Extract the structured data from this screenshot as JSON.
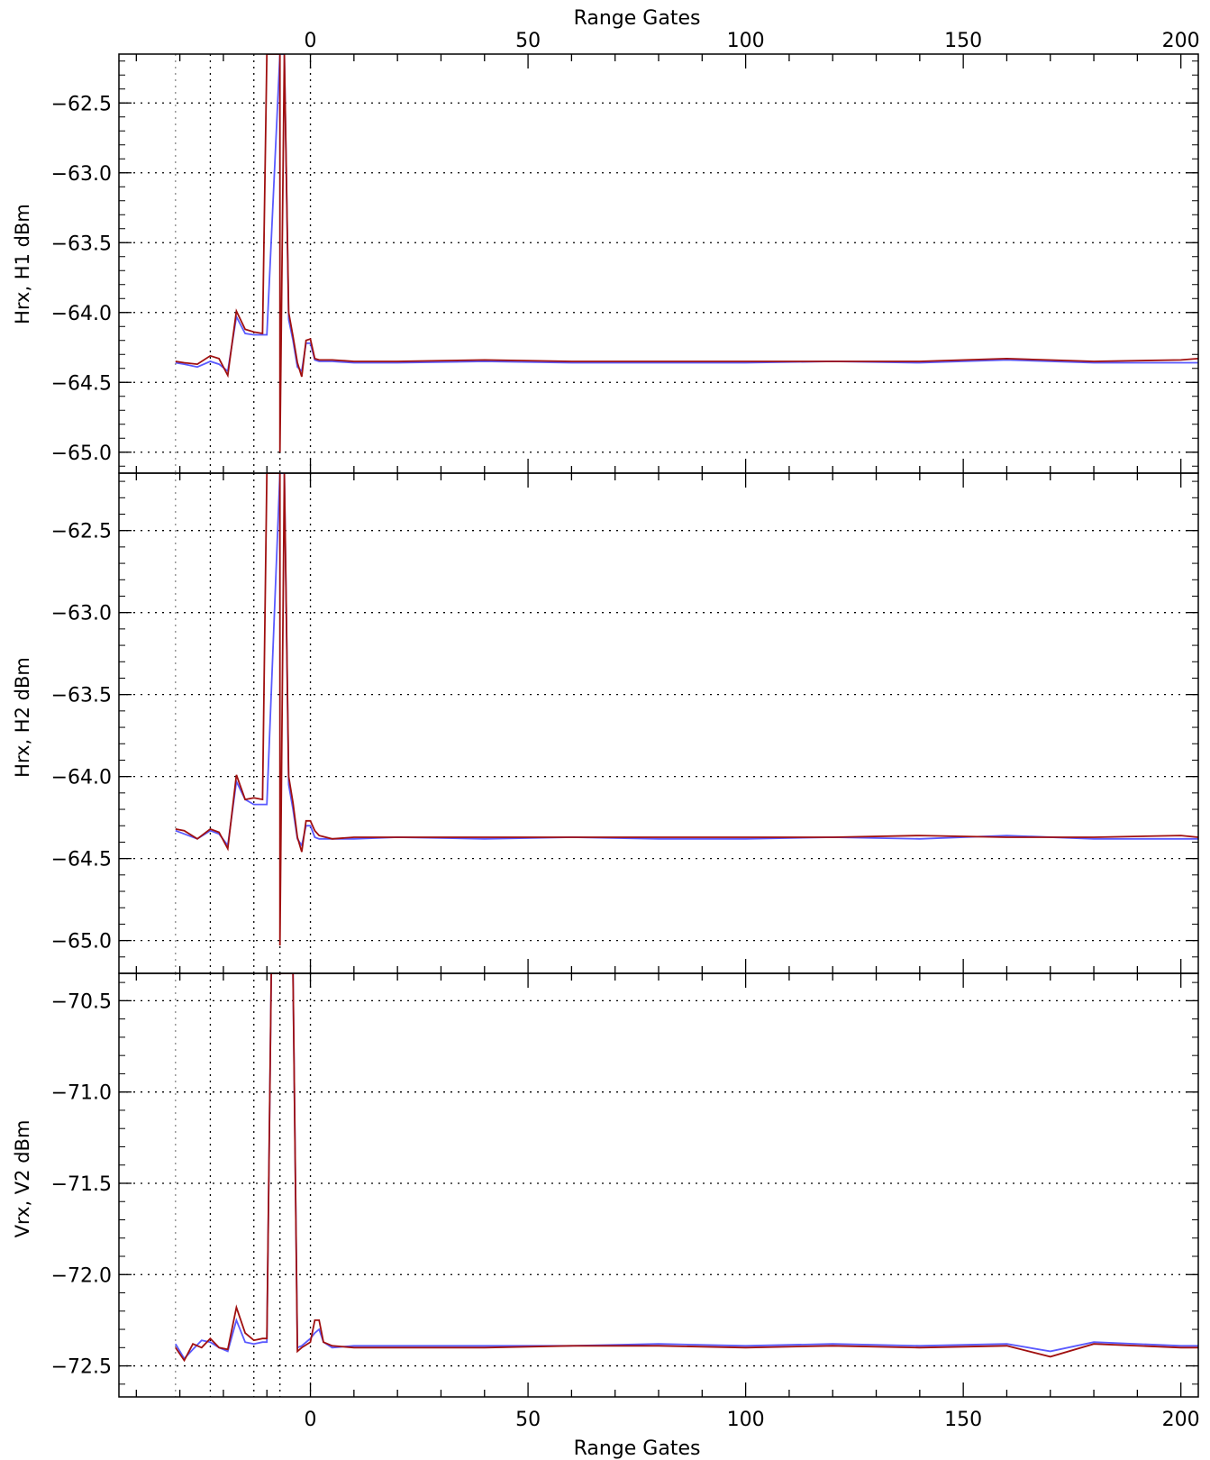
{
  "chart_data": [
    {
      "type": "line",
      "panel": "top",
      "ylabel": "Hrx, H1  dBm",
      "x_axis_label_top": "Range Gates",
      "xlim": [
        -44,
        204
      ],
      "ylim": [
        -65.15,
        -62.15
      ],
      "x_ticks": [
        0,
        50,
        100,
        150,
        200
      ],
      "y_ticks": [
        -65.0,
        -64.5,
        -64.0,
        -63.5,
        -63.0,
        -62.5
      ],
      "grid": true,
      "markers_x": [
        -31,
        -23,
        -13,
        -7,
        0
      ],
      "series": [
        {
          "color": "#5a5aff",
          "x": [
            -31,
            -29,
            -26,
            -23,
            -21,
            -19,
            -17,
            -15,
            -13,
            -11,
            -10,
            -7,
            -6,
            -5,
            -4,
            -3,
            -2,
            -1,
            0,
            1,
            2,
            5,
            10,
            20,
            40,
            60,
            80,
            100,
            120,
            140,
            160,
            180,
            200,
            204
          ],
          "y": [
            -64.36,
            -64.37,
            -64.39,
            -64.35,
            -64.37,
            -64.42,
            -64.03,
            -64.15,
            -64.16,
            -64.16,
            -64.16,
            -62.15,
            -62.15,
            -64.05,
            -64.2,
            -64.39,
            -64.42,
            -64.22,
            -64.22,
            -64.34,
            -64.35,
            -64.35,
            -64.36,
            -64.36,
            -64.35,
            -64.36,
            -64.36,
            -64.36,
            -64.35,
            -64.36,
            -64.34,
            -64.36,
            -64.36,
            -64.36
          ]
        },
        {
          "color": "#a01010",
          "x": [
            -31,
            -29,
            -26,
            -23,
            -21,
            -19,
            -17,
            -15,
            -13,
            -11,
            -10,
            -7,
            -7,
            -6,
            -5,
            -4,
            -3,
            -2,
            -1,
            0,
            1,
            2,
            5,
            10,
            20,
            40,
            60,
            80,
            100,
            120,
            140,
            160,
            180,
            200,
            204
          ],
          "y": [
            -64.35,
            -64.36,
            -64.37,
            -64.31,
            -64.33,
            -64.45,
            -63.99,
            -64.12,
            -64.14,
            -64.15,
            -62.15,
            -62.15,
            -65.0,
            -62.15,
            -64.0,
            -64.17,
            -64.36,
            -64.46,
            -64.2,
            -64.19,
            -64.33,
            -64.34,
            -64.34,
            -64.35,
            -64.35,
            -64.34,
            -64.35,
            -64.35,
            -64.35,
            -64.35,
            -64.35,
            -64.33,
            -64.35,
            -64.34,
            -64.33
          ]
        }
      ]
    },
    {
      "type": "line",
      "panel": "middle",
      "ylabel": "Hrx, H2  dBm",
      "xlim": [
        -44,
        204
      ],
      "ylim": [
        -65.2,
        -62.15
      ],
      "x_ticks": [
        0,
        50,
        100,
        150,
        200
      ],
      "y_ticks": [
        -65.0,
        -64.5,
        -64.0,
        -63.5,
        -63.0,
        -62.5
      ],
      "grid": true,
      "markers_x": [
        -31,
        -23,
        -13,
        -7,
        0
      ],
      "series": [
        {
          "color": "#5a5aff",
          "x": [
            -31,
            -29,
            -26,
            -23,
            -21,
            -19,
            -17,
            -15,
            -13,
            -11,
            -10,
            -7,
            -6,
            -5,
            -4,
            -3,
            -2,
            -1,
            0,
            1,
            2,
            5,
            10,
            20,
            40,
            60,
            80,
            100,
            120,
            140,
            160,
            180,
            200,
            204
          ],
          "y": [
            -64.33,
            -64.35,
            -64.38,
            -64.33,
            -64.35,
            -64.42,
            -64.03,
            -64.14,
            -64.17,
            -64.17,
            -64.17,
            -62.15,
            -62.15,
            -64.05,
            -64.2,
            -64.38,
            -64.42,
            -64.3,
            -64.3,
            -64.37,
            -64.38,
            -64.38,
            -64.38,
            -64.37,
            -64.38,
            -64.37,
            -64.38,
            -64.38,
            -64.37,
            -64.38,
            -64.36,
            -64.38,
            -64.38,
            -64.38
          ]
        },
        {
          "color": "#a01010",
          "x": [
            -31,
            -29,
            -26,
            -23,
            -21,
            -19,
            -17,
            -15,
            -13,
            -11,
            -10,
            -7,
            -7,
            -6,
            -5,
            -4,
            -3,
            -2,
            -1,
            0,
            1,
            2,
            5,
            10,
            20,
            40,
            60,
            80,
            100,
            120,
            140,
            160,
            180,
            200,
            204
          ],
          "y": [
            -64.32,
            -64.33,
            -64.38,
            -64.32,
            -64.34,
            -64.44,
            -63.99,
            -64.14,
            -64.13,
            -64.14,
            -62.15,
            -62.15,
            -65.03,
            -62.15,
            -64.0,
            -64.16,
            -64.37,
            -64.46,
            -64.27,
            -64.27,
            -64.33,
            -64.36,
            -64.38,
            -64.37,
            -64.37,
            -64.37,
            -64.37,
            -64.37,
            -64.37,
            -64.37,
            -64.36,
            -64.37,
            -64.37,
            -64.36,
            -64.37
          ]
        }
      ]
    },
    {
      "type": "line",
      "panel": "bottom",
      "ylabel": "Vrx, V2  dBm",
      "xlabel": "Range Gates",
      "xlim": [
        -44,
        204
      ],
      "ylim": [
        -72.67,
        -70.35
      ],
      "x_ticks": [
        0,
        50,
        100,
        150,
        200
      ],
      "y_ticks": [
        -72.5,
        -72.0,
        -71.5,
        -71.0,
        -70.5
      ],
      "grid": true,
      "markers_x": [
        -31,
        -23,
        -13,
        -7,
        0
      ],
      "series": [
        {
          "color": "#5a5aff",
          "x": [
            -31,
            -29,
            -27,
            -25,
            -23,
            -21,
            -19,
            -17,
            -15,
            -13,
            -11,
            -10,
            -9,
            -4,
            -3,
            -2,
            0,
            1,
            2,
            3,
            5,
            10,
            20,
            40,
            60,
            80,
            100,
            120,
            140,
            160,
            170,
            180,
            200,
            204
          ],
          "y": [
            -72.38,
            -72.46,
            -72.41,
            -72.36,
            -72.37,
            -72.4,
            -72.42,
            -72.25,
            -72.37,
            -72.38,
            -72.37,
            -72.37,
            -70.35,
            -70.35,
            -72.4,
            -72.39,
            -72.35,
            -72.32,
            -72.3,
            -72.37,
            -72.4,
            -72.39,
            -72.39,
            -72.39,
            -72.39,
            -72.38,
            -72.39,
            -72.38,
            -72.39,
            -72.38,
            -72.42,
            -72.37,
            -72.39,
            -72.39
          ]
        },
        {
          "color": "#a01010",
          "x": [
            -31,
            -29,
            -27,
            -25,
            -23,
            -21,
            -19,
            -17,
            -15,
            -13,
            -11,
            -10,
            -9,
            -4,
            -3,
            -2,
            0,
            1,
            2,
            3,
            5,
            10,
            20,
            40,
            60,
            80,
            100,
            120,
            140,
            160,
            170,
            180,
            200,
            204
          ],
          "y": [
            -72.4,
            -72.47,
            -72.38,
            -72.4,
            -72.35,
            -72.4,
            -72.41,
            -72.18,
            -72.32,
            -72.36,
            -72.35,
            -72.35,
            -70.35,
            -70.35,
            -72.42,
            -72.4,
            -72.37,
            -72.25,
            -72.25,
            -72.37,
            -72.39,
            -72.4,
            -72.4,
            -72.4,
            -72.39,
            -72.39,
            -72.4,
            -72.39,
            -72.4,
            -72.39,
            -72.45,
            -72.38,
            -72.4,
            -72.4
          ]
        }
      ]
    }
  ]
}
